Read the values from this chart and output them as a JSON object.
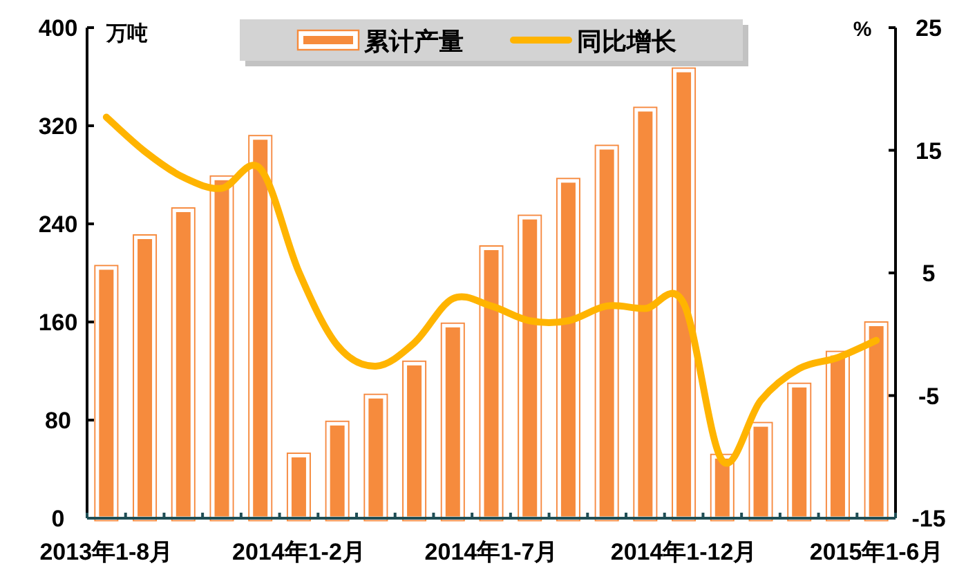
{
  "chart_data": {
    "type": "bar",
    "categories": [
      "2013年1-8月",
      null,
      null,
      null,
      null,
      "2014年1-2月",
      null,
      null,
      null,
      null,
      "2014年1-7月",
      null,
      null,
      null,
      null,
      "2014年1-12月",
      null,
      null,
      null,
      null,
      "2015年1-6月"
    ],
    "series": [
      {
        "name": "累计产量",
        "color": "#f68b3c",
        "values": [
          204,
          229,
          251,
          277,
          310,
          51,
          77,
          99,
          126,
          157,
          220,
          245,
          275,
          302,
          333,
          365,
          50,
          76,
          108,
          134,
          158
        ]
      },
      {
        "name": "同比增长",
        "type": "line",
        "axis": "y2",
        "color": "#ffb400",
        "values": [
          17.7,
          14.9,
          12.8,
          11.9,
          13.5,
          5.1,
          -0.9,
          -2.6,
          -0.7,
          2.9,
          2.3,
          1.1,
          1.1,
          2.3,
          2.1,
          2.5,
          -10.3,
          -5.4,
          -2.8,
          -1.9,
          -0.5
        ]
      }
    ],
    "ylabel": "万吨",
    "y2label": "%",
    "ylim": [
      0,
      400
    ],
    "yticks": [
      0,
      80,
      160,
      240,
      320,
      400
    ],
    "y2lim": [
      -15,
      25
    ],
    "y2ticks": [
      -15,
      -5,
      5,
      15,
      25
    ],
    "legend": "top",
    "grid": false
  }
}
